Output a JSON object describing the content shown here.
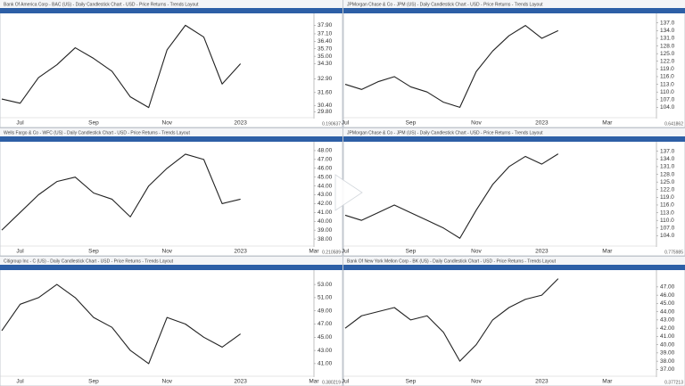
{
  "chart_data": [
    {
      "type": "line",
      "title": "Bank Of America Corp - BAC (US) - Daily Candlestick Chart - USD - Price Returns - Trends Layout",
      "categories": [
        null,
        "Jul",
        null,
        null,
        null,
        "Sep",
        null,
        null,
        null,
        "Nov",
        null,
        null,
        null,
        "2023",
        null,
        null,
        null,
        null
      ],
      "values": [
        31.0,
        30.6,
        33.0,
        34.2,
        35.8,
        34.8,
        33.6,
        31.2,
        30.2,
        35.6,
        37.9,
        36.8,
        32.4,
        34.3,
        null,
        null,
        null,
        null
      ],
      "color": "#222222",
      "ylim": [
        29.5,
        38.6
      ],
      "yticks": [
        {
          "value": 37.9,
          "label": "37.90"
        },
        {
          "value": 37.1,
          "label": "37.10"
        },
        {
          "value": 36.4,
          "label": "36.40"
        },
        {
          "value": 35.7,
          "label": "35.70"
        },
        {
          "value": 35,
          "label": "35.00"
        },
        {
          "value": 34.3,
          "label": "34.30"
        },
        {
          "value": 32.9,
          "label": "32.90"
        },
        {
          "value": 31.6,
          "label": "31.60"
        },
        {
          "value": 30.4,
          "label": "30.40"
        },
        {
          "value": 29.8,
          "label": "29.80"
        }
      ],
      "corner_label": "0.190637"
    },
    {
      "type": "line",
      "title": "JPMorgan Chase & Co - JPM (US) - Daily Candlestick Chart - USD - Price Returns - Trends Layout",
      "categories": [
        "Jul",
        null,
        null,
        null,
        "Sep",
        null,
        null,
        null,
        "Nov",
        null,
        null,
        null,
        "2023",
        null,
        null,
        null,
        "Mar",
        null,
        null,
        null
      ],
      "values": [
        113,
        111,
        114,
        116,
        112,
        110,
        106,
        104,
        118,
        126,
        132,
        136,
        131,
        134,
        null,
        null,
        null,
        null,
        null,
        null
      ],
      "color": "#222222",
      "ylim": [
        101,
        139
      ],
      "yticks": [
        {
          "value": 137,
          "label": "137.0"
        },
        {
          "value": 134,
          "label": "134.0"
        },
        {
          "value": 131,
          "label": "131.0"
        },
        {
          "value": 128,
          "label": "128.0"
        },
        {
          "value": 125,
          "label": "125.0"
        },
        {
          "value": 122,
          "label": "122.0"
        },
        {
          "value": 119,
          "label": "119.0"
        },
        {
          "value": 116,
          "label": "116.0"
        },
        {
          "value": 113,
          "label": "113.0"
        },
        {
          "value": 110,
          "label": "110.0"
        },
        {
          "value": 107,
          "label": "107.0"
        },
        {
          "value": 104,
          "label": "104.0"
        }
      ],
      "corner_label": "0.641862"
    },
    {
      "type": "line",
      "title": "Wells Fargo & Co - WFC (US) - Daily Candlestick Chart - USD - Price Returns - Trends Layout",
      "categories": [
        null,
        "Jul",
        null,
        null,
        null,
        "Sep",
        null,
        null,
        null,
        "Nov",
        null,
        null,
        null,
        "2023",
        null,
        null,
        null,
        "Mar"
      ],
      "values": [
        39.0,
        41.0,
        43.0,
        44.5,
        45.0,
        43.2,
        42.5,
        40.5,
        44.0,
        46.0,
        47.6,
        47.0,
        42.0,
        42.5,
        null,
        null,
        null,
        null
      ],
      "color": "#222222",
      "ylim": [
        37.5,
        48.5
      ],
      "yticks": [
        {
          "value": 48,
          "label": "48.00"
        },
        {
          "value": 47,
          "label": "47.00"
        },
        {
          "value": 46,
          "label": "46.00"
        },
        {
          "value": 45,
          "label": "45.00"
        },
        {
          "value": 44,
          "label": "44.00"
        },
        {
          "value": 43,
          "label": "43.00"
        },
        {
          "value": 42,
          "label": "42.00"
        },
        {
          "value": 41,
          "label": "41.00"
        },
        {
          "value": 40,
          "label": "40.00"
        },
        {
          "value": 39,
          "label": "39.00"
        },
        {
          "value": 38,
          "label": "38.00"
        }
      ],
      "corner_label": "0.210589"
    },
    {
      "type": "line",
      "title": "JPMorgan Chase & Co - JPM (US) - Daily Candlestick Chart - USD - Price Returns - Trends Layout",
      "categories": [
        "Jul",
        null,
        null,
        null,
        "Sep",
        null,
        null,
        null,
        "Nov",
        null,
        null,
        null,
        "2023",
        null,
        null,
        null,
        "Mar",
        null,
        null,
        null
      ],
      "values": [
        112,
        110,
        113,
        116,
        113,
        110,
        107,
        103,
        114,
        124,
        131,
        135,
        132,
        136,
        null,
        null,
        null,
        null,
        null,
        null
      ],
      "color": "#222222",
      "ylim": [
        101,
        139
      ],
      "yticks": [
        {
          "value": 137,
          "label": "137.0"
        },
        {
          "value": 134,
          "label": "134.0"
        },
        {
          "value": 131,
          "label": "131.0"
        },
        {
          "value": 128,
          "label": "128.0"
        },
        {
          "value": 125,
          "label": "125.0"
        },
        {
          "value": 122,
          "label": "122.0"
        },
        {
          "value": 119,
          "label": "119.0"
        },
        {
          "value": 116,
          "label": "116.0"
        },
        {
          "value": 113,
          "label": "113.0"
        },
        {
          "value": 110,
          "label": "110.0"
        },
        {
          "value": 107,
          "label": "107.0"
        },
        {
          "value": 104,
          "label": "104.0"
        }
      ],
      "corner_label": "0.775985"
    },
    {
      "type": "line",
      "title": "Citigroup Inc - C (US) - Daily Candlestick Chart - USD - Price Returns - Trends Layout",
      "categories": [
        null,
        "Jul",
        null,
        null,
        null,
        "Sep",
        null,
        null,
        null,
        "Nov",
        null,
        null,
        null,
        "2023",
        null,
        null,
        null,
        "Mar"
      ],
      "values": [
        46,
        50,
        51,
        53,
        51,
        48,
        46.5,
        43,
        41,
        48,
        47,
        45,
        43.5,
        45.5,
        null,
        null,
        null,
        null
      ],
      "color": "#222222",
      "ylim": [
        39.5,
        54.5
      ],
      "yticks": [
        {
          "value": 53,
          "label": "53.00"
        },
        {
          "value": 51,
          "label": "51.00"
        },
        {
          "value": 49,
          "label": "49.00"
        },
        {
          "value": 47,
          "label": "47.00"
        },
        {
          "value": 45,
          "label": "45.00"
        },
        {
          "value": 43,
          "label": "43.00"
        },
        {
          "value": 41,
          "label": "41.00"
        }
      ],
      "corner_label": "0.380219"
    },
    {
      "type": "line",
      "title": "Bank Of New York Mellon Corp - BK (US) - Daily Candlestick Chart - USD - Price Returns - Trends Layout",
      "categories": [
        "Jul",
        null,
        null,
        null,
        "Sep",
        null,
        null,
        null,
        "Nov",
        null,
        null,
        null,
        "2023",
        null,
        null,
        null,
        "Mar",
        null,
        null,
        null
      ],
      "values": [
        42,
        43.5,
        44,
        44.5,
        43,
        43.5,
        41.5,
        38,
        40,
        43,
        44.5,
        45.5,
        46,
        48,
        null,
        null,
        null,
        null,
        null,
        null
      ],
      "color": "#222222",
      "ylim": [
        36.5,
        48.5
      ],
      "yticks": [
        {
          "value": 47,
          "label": "47.00"
        },
        {
          "value": 46,
          "label": "46.00"
        },
        {
          "value": 45,
          "label": "45.00"
        },
        {
          "value": 44,
          "label": "44.00"
        },
        {
          "value": 43,
          "label": "43.00"
        },
        {
          "value": 42,
          "label": "42.00"
        },
        {
          "value": 41,
          "label": "41.00"
        },
        {
          "value": 40,
          "label": "40.00"
        },
        {
          "value": 39,
          "label": "39.00"
        },
        {
          "value": 38,
          "label": "38.00"
        },
        {
          "value": 37,
          "label": "37.00"
        }
      ],
      "corner_label": "0.377213"
    }
  ]
}
